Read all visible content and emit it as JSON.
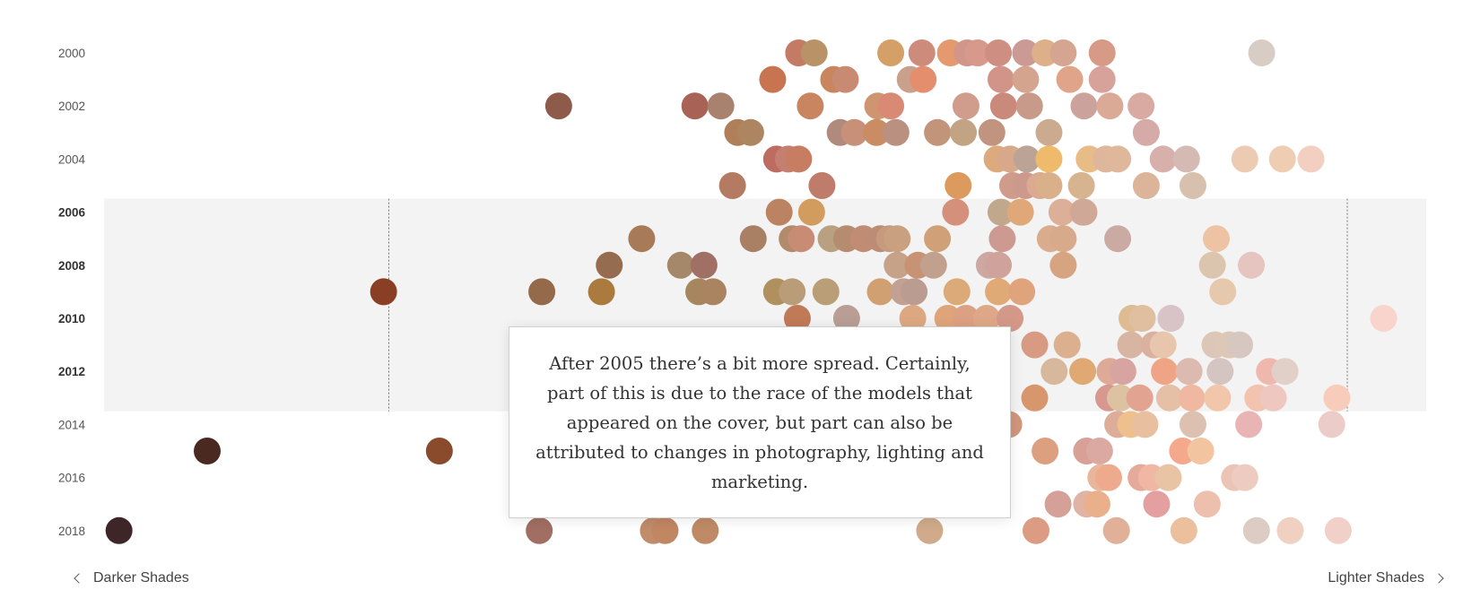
{
  "chart_data": {
    "type": "scatter",
    "note": "After 2005 there’s a bit more spread. Certainly, part of this is due to the race of the models that appeared on the cover, but part can also be attributed to changes in photography, lighting and marketing.",
    "x_axis": {
      "left_label": "Darker Shades",
      "right_label": "Lighter Shades",
      "range": [
        0,
        1
      ]
    },
    "y_ticks": [
      "2000",
      "2002",
      "2004",
      "2006",
      "2008",
      "2010",
      "2012",
      "2014",
      "2016",
      "2018"
    ],
    "y_range": [
      2000,
      2018
    ],
    "highlight": {
      "years": [
        2006,
        2013
      ],
      "bold_ticks": [
        "2006",
        "2008",
        "2010",
        "2012"
      ],
      "bound_lines": [
        0.214,
        0.953
      ]
    },
    "points": [
      {
        "year": 2000,
        "x": 0.53,
        "color": "#c47b66"
      },
      {
        "year": 2000,
        "x": 0.542,
        "color": "#b99267"
      },
      {
        "year": 2000,
        "x": 0.601,
        "color": "#d4a068"
      },
      {
        "year": 2000,
        "x": 0.625,
        "color": "#cc8b7b"
      },
      {
        "year": 2000,
        "x": 0.647,
        "color": "#e49a6e"
      },
      {
        "year": 2000,
        "x": 0.66,
        "color": "#d2958a"
      },
      {
        "year": 2000,
        "x": 0.668,
        "color": "#d7998c"
      },
      {
        "year": 2000,
        "x": 0.684,
        "color": "#cf8e82"
      },
      {
        "year": 2000,
        "x": 0.705,
        "color": "#cc9a94"
      },
      {
        "year": 2000,
        "x": 0.72,
        "color": "#deb08a"
      },
      {
        "year": 2000,
        "x": 0.734,
        "color": "#d6a592"
      },
      {
        "year": 2000,
        "x": 0.764,
        "color": "#d69a86"
      },
      {
        "year": 2000,
        "x": 0.887,
        "color": "#d8cdc4"
      },
      {
        "year": 2001,
        "x": 0.51,
        "color": "#c87450"
      },
      {
        "year": 2001,
        "x": 0.557,
        "color": "#c9855e"
      },
      {
        "year": 2001,
        "x": 0.566,
        "color": "#c88a72"
      },
      {
        "year": 2001,
        "x": 0.616,
        "color": "#c8a08c"
      },
      {
        "year": 2001,
        "x": 0.626,
        "color": "#e58e6e"
      },
      {
        "year": 2001,
        "x": 0.686,
        "color": "#d29488"
      },
      {
        "year": 2001,
        "x": 0.705,
        "color": "#d4a48f"
      },
      {
        "year": 2001,
        "x": 0.739,
        "color": "#e0a48a"
      },
      {
        "year": 2001,
        "x": 0.764,
        "color": "#d6a29a"
      },
      {
        "year": 2002,
        "x": 0.345,
        "color": "#8e5a4a"
      },
      {
        "year": 2002,
        "x": 0.45,
        "color": "#a96356"
      },
      {
        "year": 2002,
        "x": 0.47,
        "color": "#a9816f"
      },
      {
        "year": 2002,
        "x": 0.539,
        "color": "#c8855f"
      },
      {
        "year": 2002,
        "x": 0.591,
        "color": "#ce9670"
      },
      {
        "year": 2002,
        "x": 0.601,
        "color": "#d88a74"
      },
      {
        "year": 2002,
        "x": 0.659,
        "color": "#d09c8c"
      },
      {
        "year": 2002,
        "x": 0.688,
        "color": "#c98a7c"
      },
      {
        "year": 2002,
        "x": 0.708,
        "color": "#c79a8a"
      },
      {
        "year": 2002,
        "x": 0.75,
        "color": "#cca39c"
      },
      {
        "year": 2002,
        "x": 0.77,
        "color": "#dbaa96"
      },
      {
        "year": 2002,
        "x": 0.794,
        "color": "#d9aaa2"
      },
      {
        "year": 2003,
        "x": 0.483,
        "color": "#b07e58"
      },
      {
        "year": 2003,
        "x": 0.493,
        "color": "#ad8560"
      },
      {
        "year": 2003,
        "x": 0.562,
        "color": "#b08a7c"
      },
      {
        "year": 2003,
        "x": 0.573,
        "color": "#c89078"
      },
      {
        "year": 2003,
        "x": 0.59,
        "color": "#ca8c62"
      },
      {
        "year": 2003,
        "x": 0.605,
        "color": "#ba9080"
      },
      {
        "year": 2003,
        "x": 0.637,
        "color": "#c2957a"
      },
      {
        "year": 2003,
        "x": 0.657,
        "color": "#c2a384"
      },
      {
        "year": 2003,
        "x": 0.679,
        "color": "#c0947e"
      },
      {
        "year": 2003,
        "x": 0.723,
        "color": "#ccaa90"
      },
      {
        "year": 2003,
        "x": 0.798,
        "color": "#d6aaa6"
      },
      {
        "year": 2004,
        "x": 0.513,
        "color": "#bd6c62"
      },
      {
        "year": 2004,
        "x": 0.522,
        "color": "#c47f70"
      },
      {
        "year": 2004,
        "x": 0.53,
        "color": "#c77d62"
      },
      {
        "year": 2004,
        "x": 0.683,
        "color": "#dcaa7c"
      },
      {
        "year": 2004,
        "x": 0.693,
        "color": "#d8a88a"
      },
      {
        "year": 2004,
        "x": 0.706,
        "color": "#bba396"
      },
      {
        "year": 2004,
        "x": 0.723,
        "color": "#f0ba6c"
      },
      {
        "year": 2004,
        "x": 0.754,
        "color": "#e8bc86"
      },
      {
        "year": 2004,
        "x": 0.767,
        "color": "#ddb69c"
      },
      {
        "year": 2004,
        "x": 0.776,
        "color": "#dfb89c"
      },
      {
        "year": 2004,
        "x": 0.811,
        "color": "#d7b0ac"
      },
      {
        "year": 2004,
        "x": 0.829,
        "color": "#d5bab4"
      },
      {
        "year": 2004,
        "x": 0.874,
        "color": "#edcab2"
      },
      {
        "year": 2004,
        "x": 0.903,
        "color": "#efcdb3"
      },
      {
        "year": 2004,
        "x": 0.925,
        "color": "#f2cfc0"
      },
      {
        "year": 2005,
        "x": 0.479,
        "color": "#b57b62"
      },
      {
        "year": 2005,
        "x": 0.548,
        "color": "#c07c6b"
      },
      {
        "year": 2005,
        "x": 0.653,
        "color": "#dc9a5e"
      },
      {
        "year": 2005,
        "x": 0.695,
        "color": "#cf9c8c"
      },
      {
        "year": 2005,
        "x": 0.705,
        "color": "#cc9a8c"
      },
      {
        "year": 2005,
        "x": 0.716,
        "color": "#dcaa90"
      },
      {
        "year": 2005,
        "x": 0.723,
        "color": "#d9b08a"
      },
      {
        "year": 2005,
        "x": 0.748,
        "color": "#d6b490"
      },
      {
        "year": 2005,
        "x": 0.798,
        "color": "#dcb49a"
      },
      {
        "year": 2005,
        "x": 0.834,
        "color": "#d8c0ae"
      },
      {
        "year": 2006,
        "x": 0.515,
        "color": "#bb8362"
      },
      {
        "year": 2006,
        "x": 0.54,
        "color": "#d29c5e"
      },
      {
        "year": 2006,
        "x": 0.651,
        "color": "#d5907c"
      },
      {
        "year": 2006,
        "x": 0.686,
        "color": "#c1a88c"
      },
      {
        "year": 2006,
        "x": 0.701,
        "color": "#e0a878"
      },
      {
        "year": 2006,
        "x": 0.733,
        "color": "#dcb098"
      },
      {
        "year": 2006,
        "x": 0.749,
        "color": "#d8aa94"
      },
      {
        "year": 2006,
        "x": 0.75,
        "color": "#d0a898"
      },
      {
        "year": 2007,
        "x": 0.409,
        "color": "#a87b58"
      },
      {
        "year": 2007,
        "x": 0.495,
        "color": "#aa8064"
      },
      {
        "year": 2007,
        "x": 0.525,
        "color": "#b28a6c"
      },
      {
        "year": 2007,
        "x": 0.532,
        "color": "#c88c74"
      },
      {
        "year": 2007,
        "x": 0.555,
        "color": "#b8a080"
      },
      {
        "year": 2007,
        "x": 0.567,
        "color": "#b68c70"
      },
      {
        "year": 2007,
        "x": 0.58,
        "color": "#c08c74"
      },
      {
        "year": 2007,
        "x": 0.593,
        "color": "#bd8c74"
      },
      {
        "year": 2007,
        "x": 0.6,
        "color": "#c69a7c"
      },
      {
        "year": 2007,
        "x": 0.606,
        "color": "#c9a080"
      },
      {
        "year": 2007,
        "x": 0.637,
        "color": "#d0a078"
      },
      {
        "year": 2007,
        "x": 0.687,
        "color": "#cc9a90"
      },
      {
        "year": 2007,
        "x": 0.724,
        "color": "#d8ac8c"
      },
      {
        "year": 2007,
        "x": 0.734,
        "color": "#d8aa8c"
      },
      {
        "year": 2007,
        "x": 0.776,
        "color": "#ccaaa4"
      },
      {
        "year": 2007,
        "x": 0.852,
        "color": "#eec3a4"
      },
      {
        "year": 2008,
        "x": 0.384,
        "color": "#956c50"
      },
      {
        "year": 2008,
        "x": 0.439,
        "color": "#a5886a"
      },
      {
        "year": 2008,
        "x": 0.457,
        "color": "#a07064"
      },
      {
        "year": 2008,
        "x": 0.606,
        "color": "#c6a288"
      },
      {
        "year": 2008,
        "x": 0.622,
        "color": "#c89274"
      },
      {
        "year": 2008,
        "x": 0.634,
        "color": "#c2a08e"
      },
      {
        "year": 2008,
        "x": 0.677,
        "color": "#cca8a0"
      },
      {
        "year": 2008,
        "x": 0.684,
        "color": "#cfa29c"
      },
      {
        "year": 2008,
        "x": 0.734,
        "color": "#d6a480"
      },
      {
        "year": 2008,
        "x": 0.849,
        "color": "#dcc5ae"
      },
      {
        "year": 2008,
        "x": 0.879,
        "color": "#e6c4c0"
      },
      {
        "year": 2009,
        "x": 0.21,
        "color": "#8a3f25"
      },
      {
        "year": 2009,
        "x": 0.332,
        "color": "#946a4b"
      },
      {
        "year": 2009,
        "x": 0.378,
        "color": "#aa7a3e"
      },
      {
        "year": 2009,
        "x": 0.453,
        "color": "#a6865e"
      },
      {
        "year": 2009,
        "x": 0.464,
        "color": "#aa8460"
      },
      {
        "year": 2009,
        "x": 0.513,
        "color": "#b0905e"
      },
      {
        "year": 2009,
        "x": 0.525,
        "color": "#ba9c78"
      },
      {
        "year": 2009,
        "x": 0.551,
        "color": "#b99e78"
      },
      {
        "year": 2009,
        "x": 0.593,
        "color": "#d0a070"
      },
      {
        "year": 2009,
        "x": 0.611,
        "color": "#c2a094"
      },
      {
        "year": 2009,
        "x": 0.619,
        "color": "#bb9c90"
      },
      {
        "year": 2009,
        "x": 0.652,
        "color": "#dcaa78"
      },
      {
        "year": 2009,
        "x": 0.684,
        "color": "#e0aa76"
      },
      {
        "year": 2009,
        "x": 0.702,
        "color": "#e0a47c"
      },
      {
        "year": 2009,
        "x": 0.857,
        "color": "#e6c8ac"
      },
      {
        "year": 2010,
        "x": 0.529,
        "color": "#c07a58"
      },
      {
        "year": 2010,
        "x": 0.567,
        "color": "#b89e94"
      },
      {
        "year": 2010,
        "x": 0.618,
        "color": "#dca882"
      },
      {
        "year": 2010,
        "x": 0.645,
        "color": "#dfa47a"
      },
      {
        "year": 2010,
        "x": 0.659,
        "color": "#dca082"
      },
      {
        "year": 2010,
        "x": 0.675,
        "color": "#dea888"
      },
      {
        "year": 2010,
        "x": 0.693,
        "color": "#d49888"
      },
      {
        "year": 2010,
        "x": 0.787,
        "color": "#dcbc90"
      },
      {
        "year": 2010,
        "x": 0.795,
        "color": "#e0bea0"
      },
      {
        "year": 2010,
        "x": 0.817,
        "color": "#d8c4c6"
      },
      {
        "year": 2010,
        "x": 0.981,
        "color": "#f8d4cc"
      },
      {
        "year": 2011,
        "x": 0.712,
        "color": "#d89a82"
      },
      {
        "year": 2011,
        "x": 0.737,
        "color": "#dcb08e"
      },
      {
        "year": 2011,
        "x": 0.786,
        "color": "#d8b4a2"
      },
      {
        "year": 2011,
        "x": 0.804,
        "color": "#dab09e"
      },
      {
        "year": 2011,
        "x": 0.811,
        "color": "#e8c6ae"
      },
      {
        "year": 2011,
        "x": 0.851,
        "color": "#dcc6b8"
      },
      {
        "year": 2011,
        "x": 0.862,
        "color": "#ddc8b8"
      },
      {
        "year": 2011,
        "x": 0.87,
        "color": "#d6c8c0"
      },
      {
        "year": 2012,
        "x": 0.727,
        "color": "#d8b89c"
      },
      {
        "year": 2012,
        "x": 0.749,
        "color": "#e0a872"
      },
      {
        "year": 2012,
        "x": 0.77,
        "color": "#dcaa96"
      },
      {
        "year": 2012,
        "x": 0.78,
        "color": "#d8a4a2"
      },
      {
        "year": 2012,
        "x": 0.812,
        "color": "#f0a486"
      },
      {
        "year": 2012,
        "x": 0.831,
        "color": "#dcbab0"
      },
      {
        "year": 2012,
        "x": 0.855,
        "color": "#d4c4c2"
      },
      {
        "year": 2012,
        "x": 0.893,
        "color": "#f0b8ac"
      },
      {
        "year": 2012,
        "x": 0.905,
        "color": "#e0d0c8"
      },
      {
        "year": 2013,
        "x": 0.712,
        "color": "#d8966c"
      },
      {
        "year": 2013,
        "x": 0.769,
        "color": "#d89890"
      },
      {
        "year": 2013,
        "x": 0.778,
        "color": "#dcc2a0"
      },
      {
        "year": 2013,
        "x": 0.793,
        "color": "#e2a490"
      },
      {
        "year": 2013,
        "x": 0.816,
        "color": "#e6c0a6"
      },
      {
        "year": 2013,
        "x": 0.833,
        "color": "#f0b8a0"
      },
      {
        "year": 2013,
        "x": 0.853,
        "color": "#f2c6aa"
      },
      {
        "year": 2013,
        "x": 0.884,
        "color": "#f2c4b0"
      },
      {
        "year": 2013,
        "x": 0.896,
        "color": "#eec8c0"
      },
      {
        "year": 2013,
        "x": 0.945,
        "color": "#f8ccba"
      },
      {
        "year": 2014,
        "x": 0.345,
        "color": "#8a5a5a"
      },
      {
        "year": 2014,
        "x": 0.692,
        "color": "#d2967c"
      },
      {
        "year": 2014,
        "x": 0.776,
        "color": "#dcae9a"
      },
      {
        "year": 2014,
        "x": 0.786,
        "color": "#eec08c"
      },
      {
        "year": 2014,
        "x": 0.797,
        "color": "#e8c0a0"
      },
      {
        "year": 2014,
        "x": 0.834,
        "color": "#dcc0b0"
      },
      {
        "year": 2014,
        "x": 0.877,
        "color": "#e8b4b4"
      },
      {
        "year": 2014,
        "x": 0.941,
        "color": "#ecccc8"
      },
      {
        "year": 2015,
        "x": 0.074,
        "color": "#4a2a20"
      },
      {
        "year": 2015,
        "x": 0.253,
        "color": "#8a4a2c"
      },
      {
        "year": 2015,
        "x": 0.72,
        "color": "#dca080"
      },
      {
        "year": 2015,
        "x": 0.752,
        "color": "#d8a096"
      },
      {
        "year": 2015,
        "x": 0.762,
        "color": "#dca8a2"
      },
      {
        "year": 2015,
        "x": 0.826,
        "color": "#f4a88c"
      },
      {
        "year": 2015,
        "x": 0.84,
        "color": "#f2c4a0"
      },
      {
        "year": 2016,
        "x": 0.345,
        "color": "#b07060"
      },
      {
        "year": 2016,
        "x": 0.763,
        "color": "#e8b69a"
      },
      {
        "year": 2016,
        "x": 0.769,
        "color": "#eeaa8c"
      },
      {
        "year": 2016,
        "x": 0.794,
        "color": "#e6aa9a"
      },
      {
        "year": 2016,
        "x": 0.802,
        "color": "#f0b8a4"
      },
      {
        "year": 2016,
        "x": 0.815,
        "color": "#e8c4a4"
      },
      {
        "year": 2016,
        "x": 0.866,
        "color": "#ecc4b6"
      },
      {
        "year": 2016,
        "x": 0.874,
        "color": "#eecbc0"
      },
      {
        "year": 2017,
        "x": 0.73,
        "color": "#d4a098"
      },
      {
        "year": 2017,
        "x": 0.752,
        "color": "#e0b4a4"
      },
      {
        "year": 2017,
        "x": 0.76,
        "color": "#eab08c"
      },
      {
        "year": 2017,
        "x": 0.806,
        "color": "#e4a0a0"
      },
      {
        "year": 2017,
        "x": 0.845,
        "color": "#ecc0ac"
      },
      {
        "year": 2018,
        "x": 0.006,
        "color": "#3e2628"
      },
      {
        "year": 2018,
        "x": 0.33,
        "color": "#a06e62"
      },
      {
        "year": 2018,
        "x": 0.418,
        "color": "#c08c6a"
      },
      {
        "year": 2018,
        "x": 0.427,
        "color": "#c18662"
      },
      {
        "year": 2018,
        "x": 0.458,
        "color": "#c08a66"
      },
      {
        "year": 2018,
        "x": 0.631,
        "color": "#d0aa8a"
      },
      {
        "year": 2018,
        "x": 0.713,
        "color": "#dc9c84"
      },
      {
        "year": 2018,
        "x": 0.775,
        "color": "#e0b098"
      },
      {
        "year": 2018,
        "x": 0.827,
        "color": "#ecc09c"
      },
      {
        "year": 2018,
        "x": 0.883,
        "color": "#dcccc4"
      },
      {
        "year": 2018,
        "x": 0.909,
        "color": "#f0d0c0"
      },
      {
        "year": 2018,
        "x": 0.946,
        "color": "#f0d0c8"
      }
    ]
  }
}
